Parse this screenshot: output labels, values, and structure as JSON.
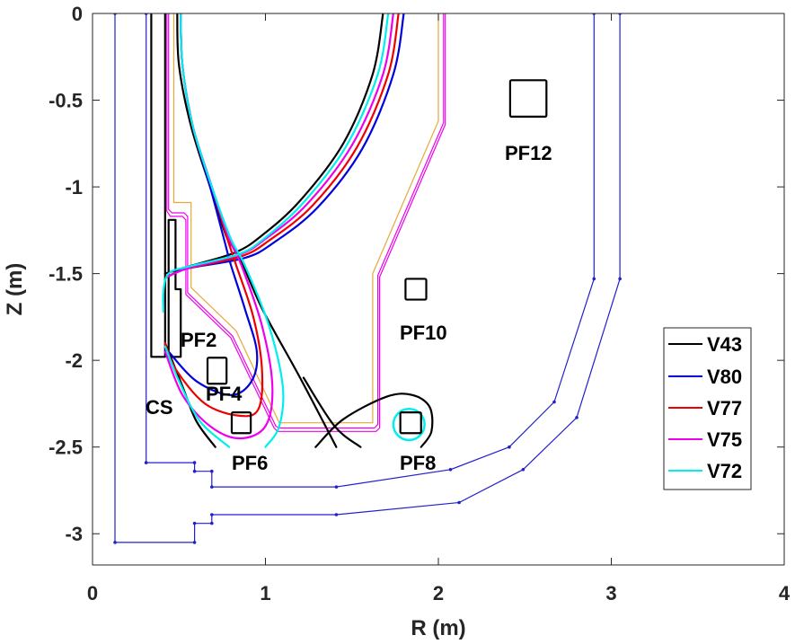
{
  "chart_data": {
    "type": "line",
    "title": "",
    "xlabel": "R (m)",
    "ylabel": "Z (m)",
    "xlim": [
      0,
      4
    ],
    "ylim": [
      -3.18,
      0
    ],
    "grid": false,
    "x_ticks": [
      "0",
      "1",
      "2",
      "3",
      "4"
    ],
    "x_tick_values": [
      0,
      1,
      2,
      3,
      4
    ],
    "y_ticks": [
      "0",
      "-0.5",
      "-1",
      "-1.5",
      "-2",
      "-2.5",
      "-3"
    ],
    "y_tick_values": [
      0,
      -0.5,
      -1,
      -1.5,
      -2,
      -2.5,
      -3
    ],
    "legend_placement": "right",
    "colors": {
      "V43": "#000000",
      "V80": "#0000dd",
      "V77": "#ee0000",
      "V75": "#ee00ee",
      "V72": "#00eeee",
      "wall_blue": "#2020cc",
      "wall_orange": "#e6a83a",
      "wall_magenta": "#ee00ee",
      "coil": "#000000"
    },
    "series": [
      {
        "name": "V43",
        "color_key": "V43",
        "upper_arc": [
          [
            1.68,
            0
          ],
          [
            1.62,
            -0.35
          ],
          [
            1.45,
            -0.75
          ],
          [
            1.2,
            -1.08
          ],
          [
            0.98,
            -1.28
          ],
          [
            0.82,
            -1.38
          ],
          [
            0.55,
            -1.46
          ],
          [
            0.42,
            -1.5
          ]
        ],
        "left_leg": [
          [
            0.49,
            0
          ],
          [
            0.5,
            -0.3
          ],
          [
            0.57,
            -0.65
          ],
          [
            0.68,
            -1.0
          ],
          [
            0.78,
            -1.3
          ],
          [
            0.84,
            -1.38
          ],
          [
            0.98,
            -1.7
          ],
          [
            1.2,
            -2.1
          ],
          [
            1.41,
            -2.5
          ]
        ],
        "divertor_leg": [
          [
            0.42,
            -1.9
          ],
          [
            0.52,
            -2.15
          ],
          [
            0.6,
            -2.35
          ],
          [
            0.71,
            -2.5
          ]
        ],
        "pf8_loop": [
          [
            1.29,
            -2.5
          ],
          [
            1.45,
            -2.34
          ],
          [
            1.7,
            -2.21
          ],
          [
            1.85,
            -2.2
          ],
          [
            1.95,
            -2.27
          ],
          [
            1.96,
            -2.41
          ],
          [
            1.9,
            -2.5
          ]
        ],
        "cross_leg": [
          [
            1.22,
            -2.1
          ],
          [
            1.4,
            -2.38
          ],
          [
            1.55,
            -2.5
          ]
        ]
      },
      {
        "name": "V80",
        "color_key": "V80",
        "upper_arc": [
          [
            1.8,
            0
          ],
          [
            1.74,
            -0.35
          ],
          [
            1.56,
            -0.78
          ],
          [
            1.3,
            -1.12
          ],
          [
            1.05,
            -1.32
          ],
          [
            0.88,
            -1.41
          ],
          [
            0.55,
            -1.47
          ],
          [
            0.43,
            -1.52
          ]
        ],
        "left_leg": [
          [
            0.51,
            0
          ],
          [
            0.52,
            -0.3
          ],
          [
            0.58,
            -0.65
          ],
          [
            0.68,
            -1.0
          ],
          [
            0.76,
            -1.3
          ],
          [
            0.8,
            -1.45
          ],
          [
            0.88,
            -1.7
          ],
          [
            0.95,
            -1.95
          ],
          [
            0.92,
            -2.12
          ],
          [
            0.8,
            -2.2
          ],
          [
            0.6,
            -2.12
          ],
          [
            0.44,
            -1.95
          ]
        ]
      },
      {
        "name": "V77",
        "color_key": "V77",
        "upper_arc": [
          [
            1.77,
            0
          ],
          [
            1.71,
            -0.35
          ],
          [
            1.53,
            -0.77
          ],
          [
            1.27,
            -1.11
          ],
          [
            1.02,
            -1.31
          ],
          [
            0.86,
            -1.4
          ],
          [
            0.55,
            -1.47
          ],
          [
            0.43,
            -1.52
          ]
        ],
        "left_leg": [
          [
            0.51,
            0
          ],
          [
            0.52,
            -0.3
          ],
          [
            0.58,
            -0.65
          ],
          [
            0.69,
            -1.0
          ],
          [
            0.78,
            -1.3
          ],
          [
            0.83,
            -1.45
          ],
          [
            0.93,
            -1.75
          ],
          [
            0.98,
            -2.05
          ],
          [
            0.96,
            -2.28
          ],
          [
            0.85,
            -2.32
          ],
          [
            0.65,
            -2.25
          ],
          [
            0.48,
            -2.05
          ],
          [
            0.42,
            -1.9
          ]
        ]
      },
      {
        "name": "V75",
        "color_key": "V75",
        "upper_arc": [
          [
            1.74,
            0
          ],
          [
            1.68,
            -0.35
          ],
          [
            1.5,
            -0.76
          ],
          [
            1.24,
            -1.1
          ],
          [
            1.0,
            -1.3
          ],
          [
            0.85,
            -1.39
          ],
          [
            0.55,
            -1.47
          ],
          [
            0.43,
            -1.52
          ]
        ],
        "left_leg": [
          [
            0.51,
            0
          ],
          [
            0.52,
            -0.3
          ],
          [
            0.58,
            -0.65
          ],
          [
            0.69,
            -1.0
          ],
          [
            0.79,
            -1.3
          ],
          [
            0.86,
            -1.45
          ],
          [
            0.98,
            -1.8
          ],
          [
            1.04,
            -2.15
          ],
          [
            1.0,
            -2.38
          ],
          [
            0.85,
            -2.45
          ],
          [
            0.68,
            -2.38
          ],
          [
            0.52,
            -2.2
          ],
          [
            0.42,
            -1.95
          ]
        ]
      },
      {
        "name": "V72",
        "color_key": "V72",
        "upper_arc": [
          [
            1.71,
            0
          ],
          [
            1.65,
            -0.35
          ],
          [
            1.47,
            -0.76
          ],
          [
            1.22,
            -1.09
          ],
          [
            0.99,
            -1.3
          ],
          [
            0.84,
            -1.39
          ],
          [
            0.55,
            -1.46
          ],
          [
            0.44,
            -1.5
          ],
          [
            0.41,
            -1.6
          ],
          [
            0.41,
            -1.72
          ]
        ],
        "left_leg": [
          [
            0.51,
            0
          ],
          [
            0.52,
            -0.3
          ],
          [
            0.58,
            -0.65
          ],
          [
            0.69,
            -1.0
          ],
          [
            0.8,
            -1.3
          ],
          [
            0.88,
            -1.45
          ],
          [
            1.02,
            -1.8
          ],
          [
            1.1,
            -2.15
          ],
          [
            1.08,
            -2.38
          ],
          [
            1.0,
            -2.5
          ]
        ],
        "divertor_leg": [
          [
            0.42,
            -1.92
          ],
          [
            0.5,
            -2.12
          ],
          [
            0.62,
            -2.35
          ],
          [
            0.79,
            -2.5
          ]
        ],
        "pf8_ring": {
          "center": [
            1.83,
            -2.37
          ],
          "radius": 0.09
        }
      }
    ],
    "walls": {
      "inner_blue": [
        [
          2.9,
          0
        ],
        [
          2.9,
          -1.53
        ],
        [
          2.67,
          -2.24
        ],
        [
          2.41,
          -2.5
        ],
        [
          2.07,
          -2.63
        ],
        [
          1.41,
          -2.73
        ],
        [
          0.69,
          -2.73
        ],
        [
          0.69,
          -2.64
        ],
        [
          0.59,
          -2.64
        ],
        [
          0.59,
          -2.59
        ],
        [
          0.31,
          -2.59
        ],
        [
          0.31,
          0
        ]
      ],
      "outer_blue": [
        [
          3.05,
          0
        ],
        [
          3.05,
          -1.53
        ],
        [
          2.8,
          -2.33
        ],
        [
          2.49,
          -2.63
        ],
        [
          2.12,
          -2.82
        ],
        [
          1.41,
          -2.89
        ],
        [
          0.69,
          -2.89
        ],
        [
          0.69,
          -2.94
        ],
        [
          0.59,
          -2.94
        ],
        [
          0.59,
          -3.05
        ],
        [
          0.13,
          -3.05
        ],
        [
          0.13,
          0
        ]
      ],
      "orange": [
        [
          0.47,
          0
        ],
        [
          0.47,
          -1.09
        ],
        [
          0.57,
          -1.09
        ],
        [
          0.57,
          -1.58
        ],
        [
          0.83,
          -1.83
        ],
        [
          1.08,
          -2.36
        ],
        [
          1.62,
          -2.36
        ],
        [
          1.62,
          -1.5
        ],
        [
          2.0,
          -0.62
        ],
        [
          2.0,
          0
        ]
      ],
      "magenta_inner": [
        [
          0.43,
          0
        ],
        [
          0.43,
          -1.14
        ],
        [
          0.45,
          -1.17
        ],
        [
          0.52,
          -1.17
        ],
        [
          0.54,
          -1.19
        ],
        [
          0.54,
          -1.62
        ],
        [
          0.8,
          -1.87
        ],
        [
          1.05,
          -2.39
        ],
        [
          1.07,
          -2.41
        ],
        [
          1.64,
          -2.41
        ],
        [
          1.66,
          -2.39
        ],
        [
          1.66,
          -1.52
        ],
        [
          2.04,
          -0.64
        ],
        [
          2.04,
          0
        ]
      ],
      "magenta_outer": [
        [
          0.44,
          0
        ],
        [
          0.44,
          -1.13
        ],
        [
          0.46,
          -1.15
        ],
        [
          0.53,
          -1.15
        ],
        [
          0.55,
          -1.17
        ],
        [
          0.55,
          -1.61
        ],
        [
          0.81,
          -1.86
        ],
        [
          1.06,
          -2.38
        ],
        [
          1.08,
          -2.39
        ],
        [
          1.63,
          -2.39
        ],
        [
          1.65,
          -2.37
        ],
        [
          1.65,
          -1.51
        ],
        [
          2.03,
          -0.63
        ],
        [
          2.03,
          0
        ]
      ],
      "cs_box": [
        [
          0.34,
          0
        ],
        [
          0.34,
          -1.98
        ],
        [
          0.42,
          -1.98
        ],
        [
          0.42,
          0
        ]
      ],
      "pf2_shape": [
        [
          0.44,
          -1.19
        ],
        [
          0.44,
          -1.98
        ],
        [
          0.51,
          -1.98
        ],
        [
          0.51,
          -1.59
        ],
        [
          0.48,
          -1.59
        ],
        [
          0.48,
          -1.19
        ]
      ]
    },
    "coils": [
      {
        "name": "PF2",
        "label": "PF2",
        "center": [
          0.59,
          -1.87
        ],
        "size": [
          0,
          0
        ]
      },
      {
        "name": "PF4",
        "label": "PF4",
        "center": [
          0.72,
          -2.06
        ],
        "size": [
          0.11,
          0.15
        ]
      },
      {
        "name": "PF6",
        "label": "PF6",
        "center": [
          0.86,
          -2.36
        ],
        "size": [
          0.11,
          0.12
        ]
      },
      {
        "name": "PF8",
        "label": "PF8",
        "center": [
          1.84,
          -2.36
        ],
        "size": [
          0.12,
          0.12
        ]
      },
      {
        "name": "PF10",
        "label": "PF10",
        "center": [
          1.87,
          -1.59
        ],
        "size": [
          0.12,
          0.12
        ]
      },
      {
        "name": "PF12",
        "label": "PF12",
        "center": [
          2.52,
          -0.49
        ],
        "size": [
          0.21,
          0.21
        ]
      },
      {
        "name": "CS",
        "label": "CS",
        "center": [
          0.35,
          -2.27
        ],
        "size": [
          0,
          0
        ]
      }
    ],
    "legend": [
      "V43",
      "V80",
      "V77",
      "V75",
      "V72"
    ]
  }
}
